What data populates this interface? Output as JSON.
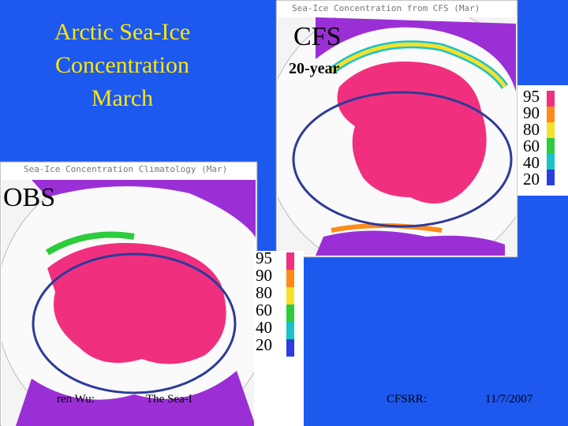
{
  "slide": {
    "title": [
      "Arctic Sea-Ice",
      "Concentration",
      "March"
    ],
    "cfs_label": "CFS",
    "cfs_sub": "20-year",
    "obs_label": "OBS",
    "cfs_panel": {
      "caption": "Sea-Ice Concentration from CFS (Mar)",
      "legend": [
        95,
        90,
        80,
        60,
        40,
        20
      ]
    },
    "obs_panel": {
      "caption": "Sea-Ice Concentration Climatology (Mar)",
      "legend": [
        95,
        90,
        80,
        60,
        40,
        20
      ]
    },
    "footer": {
      "author": "ren Wu:",
      "topic": "The Sea-I",
      "project": "CFSRR:",
      "date": "11/7/2007"
    }
  }
}
